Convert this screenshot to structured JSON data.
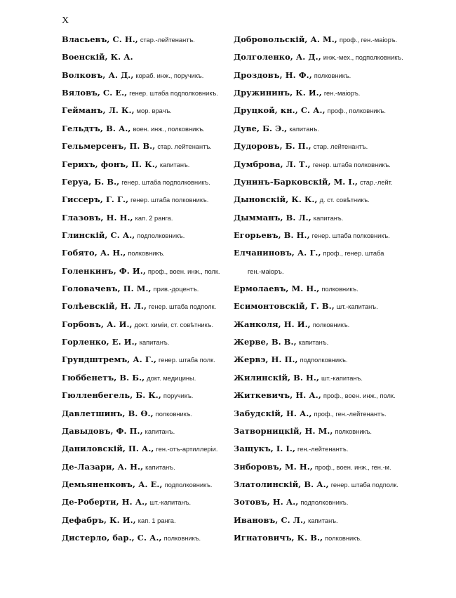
{
  "page_number": "X",
  "left_column": [
    {
      "name": "Власьевъ, С. Н.,",
      "desc": "стар.-лейтенантъ."
    },
    {
      "name": "Военскій, К. А.",
      "desc": ""
    },
    {
      "name": "Волковъ, А. Д.,",
      "desc": "кораб. инж., поручикъ."
    },
    {
      "name": "Вяловъ, С. Е.,",
      "desc": "генер. штаба подполковникъ."
    },
    {
      "name": "Гейманъ, Л. К.,",
      "desc": "мор. врачъ."
    },
    {
      "name": "Гельдтъ, В. А.,",
      "desc": "воен. инж., полковникъ."
    },
    {
      "name": "Гельмерсенъ, П. В.,",
      "desc": "стар. лейтенантъ."
    },
    {
      "name": "Герихъ, фонъ, П. К.,",
      "desc": "капитанъ."
    },
    {
      "name": "Геруа, Б. В.,",
      "desc": "генер. штаба подполковникъ."
    },
    {
      "name": "Гиссеръ, Г. Г.,",
      "desc": "генер. штаба полковникъ."
    },
    {
      "name": "Глазовъ, Н. Н.,",
      "desc": "кап. 2 ранга."
    },
    {
      "name": "Глинскій, С. А.,",
      "desc": "подполковникъ."
    },
    {
      "name": "Гобято, А. Н.,",
      "desc": "полковникъ."
    },
    {
      "name": "Голенкинъ, Ф. И.,",
      "desc": "проф., воен. инж., полк."
    },
    {
      "name": "Головачевъ, П. М.,",
      "desc": "прив.-доцентъ."
    },
    {
      "name": "Голѣевскій, Н. Л.,",
      "desc": "генер. штаба подполк."
    },
    {
      "name": "Горбовъ, А. И.,",
      "desc": "докт. химіи, ст. совѣтникъ."
    },
    {
      "name": "Горленко, Е. И.,",
      "desc": "капитанъ."
    },
    {
      "name": "Грундштремъ, А. Г.,",
      "desc": "генер. штаба полк."
    },
    {
      "name": "Гюббенетъ, В. Б.,",
      "desc": "докт. медицины."
    },
    {
      "name": "Гюлленбегель, Б. К.,",
      "desc": "поручикъ."
    },
    {
      "name": "Давлетшинъ, В. Ѳ.,",
      "desc": "полковникъ."
    },
    {
      "name": "Давыдовъ, Ф. П.,",
      "desc": "капитанъ."
    },
    {
      "name": "Даниловскій, П. А.,",
      "desc": "ген.-отъ-артиллеріи."
    },
    {
      "name": "Де-Лазари, А. Н.,",
      "desc": "капитанъ."
    },
    {
      "name": "Демьяненковъ, А. Е.,",
      "desc": "подполковникъ."
    },
    {
      "name": "Де-Роберти, Н. А.,",
      "desc": "шт.-капитанъ."
    },
    {
      "name": "Дефабръ, К. И.,",
      "desc": "кап. 1 ранга."
    },
    {
      "name": "Дистерло, бар., С. А.,",
      "desc": "полковникъ."
    }
  ],
  "right_column": [
    {
      "name": "Добровольскій, А. М.,",
      "desc": "проф., ген.-маіоръ."
    },
    {
      "name": "Долголенко, А. Д.,",
      "desc": "инж.-мех., подполковникъ."
    },
    {
      "name": "Дроздовъ, Н. Ф.,",
      "desc": "полковникъ."
    },
    {
      "name": "Дружининъ, К. И.,",
      "desc": "ген.-маіоръ."
    },
    {
      "name": "Друцкой, кн., С. А.,",
      "desc": "проф., полковникъ."
    },
    {
      "name": "Дуве, Б. Э.,",
      "desc": "капитанъ."
    },
    {
      "name": "Дудоровъ, Б. П.,",
      "desc": "стар. лейтенантъ."
    },
    {
      "name": "Думброва, Л. Т.,",
      "desc": "генер. штаба полковникъ."
    },
    {
      "name": "Дунинъ-Барковскій, М. І.,",
      "desc": "стар.-лейт."
    },
    {
      "name": "Дыновскій, К. К.,",
      "desc": "д. ст. совѣтникъ."
    },
    {
      "name": "Дымманъ, В. Л.,",
      "desc": "капитанъ."
    },
    {
      "name": "Егорьевъ, В. Н.,",
      "desc": "генер. штаба полковникъ."
    },
    {
      "name": "Елчаниновъ, А. Г.,",
      "desc": "проф., генер. штаба"
    },
    {
      "name": "",
      "desc": "ген.-маіоръ.",
      "continuation": true
    },
    {
      "name": "Ермолаевъ, М. Н.,",
      "desc": "полковникъ."
    },
    {
      "name": "Есимонтовскій, Г. В.,",
      "desc": "шт.-капитанъ."
    },
    {
      "name": "Жанколя, Н. И.,",
      "desc": "полковникъ."
    },
    {
      "name": "Жерве, В. В.,",
      "desc": "капитанъ."
    },
    {
      "name": "Жервэ, Н. П.,",
      "desc": "подполковникъ."
    },
    {
      "name": "Жилинскій, В. Н.,",
      "desc": "шт.-капитанъ."
    },
    {
      "name": "Житкевичъ, Н. А.,",
      "desc": "проф., воен. инж., полк."
    },
    {
      "name": "Забудскій, Н. А.,",
      "desc": "проф., ген.-лейтенантъ."
    },
    {
      "name": "Затворницкій, Н. М.,",
      "desc": "полковникъ."
    },
    {
      "name": "Защукъ, І. І.,",
      "desc": "ген.-лейтенантъ."
    },
    {
      "name": "Зиборовъ, М. Н.,",
      "desc": "проф., воен. инж., ген.-м."
    },
    {
      "name": "Златолинскій, В. А.,",
      "desc": "генер. штаба подполк."
    },
    {
      "name": "Зотовъ, Н. А.,",
      "desc": "подполковникъ."
    },
    {
      "name": "Ивановъ, С. Л.,",
      "desc": "капитанъ."
    },
    {
      "name": "Игнатовичъ, К. В.,",
      "desc": "полковникъ."
    }
  ]
}
